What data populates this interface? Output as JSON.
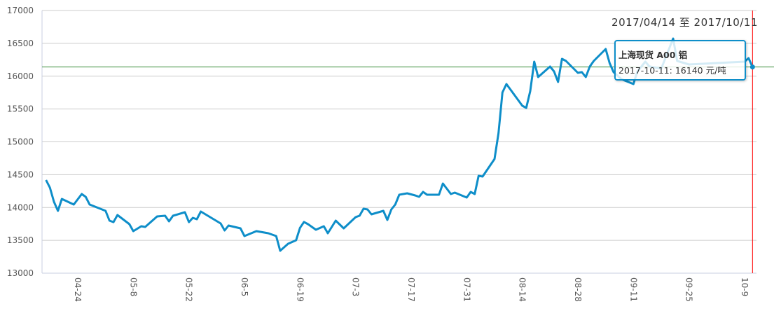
{
  "chart_data": {
    "type": "line",
    "title": "",
    "date_range_label": "2017/04/14 至 2017/10/11",
    "xlabel": "",
    "ylabel": "",
    "xlim": [
      "2017-04-15",
      "2017-10-12"
    ],
    "ylim": [
      13000,
      17000
    ],
    "yticks": [
      13000,
      13500,
      14000,
      14500,
      15000,
      15500,
      16000,
      16500,
      17000
    ],
    "xticks": [
      {
        "date": "2017-04-24",
        "label": "04-24"
      },
      {
        "date": "2017-05-08",
        "label": "05-8"
      },
      {
        "date": "2017-05-22",
        "label": "05-22"
      },
      {
        "date": "2017-06-05",
        "label": "06-5"
      },
      {
        "date": "2017-06-19",
        "label": "06-19"
      },
      {
        "date": "2017-07-03",
        "label": "07-3"
      },
      {
        "date": "2017-07-17",
        "label": "07-17"
      },
      {
        "date": "2017-07-31",
        "label": "07-31"
      },
      {
        "date": "2017-08-14",
        "label": "08-14"
      },
      {
        "date": "2017-08-28",
        "label": "08-28"
      },
      {
        "date": "2017-09-11",
        "label": "09-11"
      },
      {
        "date": "2017-09-25",
        "label": "09-25"
      },
      {
        "date": "2017-10-09",
        "label": "10-9"
      }
    ],
    "grid": true,
    "line_color": "#0e8ec9",
    "crosshair_color": "#ff0000",
    "reference_line_color": "#3f8f3f",
    "reference_value": 16140,
    "cursor_date": "2017-10-11",
    "series": [
      {
        "name": "上海现货 A00 铝",
        "points": [
          [
            "2017-04-16",
            14419
          ],
          [
            "2017-04-17",
            14301
          ],
          [
            "2017-04-18",
            14088
          ],
          [
            "2017-04-19",
            13949
          ],
          [
            "2017-04-20",
            14131
          ],
          [
            "2017-04-23",
            14045
          ],
          [
            "2017-04-25",
            14205
          ],
          [
            "2017-04-26",
            14163
          ],
          [
            "2017-04-27",
            14045
          ],
          [
            "2017-05-01",
            13949
          ],
          [
            "2017-05-02",
            13800
          ],
          [
            "2017-05-03",
            13778
          ],
          [
            "2017-05-04",
            13885
          ],
          [
            "2017-05-07",
            13747
          ],
          [
            "2017-05-08",
            13640
          ],
          [
            "2017-05-10",
            13715
          ],
          [
            "2017-05-11",
            13704
          ],
          [
            "2017-05-14",
            13864
          ],
          [
            "2017-05-16",
            13875
          ],
          [
            "2017-05-17",
            13789
          ],
          [
            "2017-05-18",
            13875
          ],
          [
            "2017-05-21",
            13928
          ],
          [
            "2017-05-22",
            13778
          ],
          [
            "2017-05-23",
            13843
          ],
          [
            "2017-05-24",
            13821
          ],
          [
            "2017-05-25",
            13939
          ],
          [
            "2017-05-30",
            13757
          ],
          [
            "2017-05-31",
            13651
          ],
          [
            "2017-06-01",
            13725
          ],
          [
            "2017-06-04",
            13683
          ],
          [
            "2017-06-05",
            13565
          ],
          [
            "2017-06-08",
            13640
          ],
          [
            "2017-06-11",
            13608
          ],
          [
            "2017-06-13",
            13565
          ],
          [
            "2017-06-14",
            13341
          ],
          [
            "2017-06-16",
            13448
          ],
          [
            "2017-06-18",
            13501
          ],
          [
            "2017-06-19",
            13690
          ],
          [
            "2017-06-20",
            13780
          ],
          [
            "2017-06-21",
            13747
          ],
          [
            "2017-06-23",
            13661
          ],
          [
            "2017-06-25",
            13715
          ],
          [
            "2017-06-26",
            13608
          ],
          [
            "2017-06-28",
            13800
          ],
          [
            "2017-06-30",
            13683
          ],
          [
            "2017-07-03",
            13853
          ],
          [
            "2017-07-04",
            13875
          ],
          [
            "2017-07-05",
            13981
          ],
          [
            "2017-07-06",
            13971
          ],
          [
            "2017-07-07",
            13896
          ],
          [
            "2017-07-10",
            13949
          ],
          [
            "2017-07-11",
            13811
          ],
          [
            "2017-07-12",
            13971
          ],
          [
            "2017-07-13",
            14045
          ],
          [
            "2017-07-14",
            14195
          ],
          [
            "2017-07-16",
            14216
          ],
          [
            "2017-07-18",
            14184
          ],
          [
            "2017-07-19",
            14163
          ],
          [
            "2017-07-20",
            14237
          ],
          [
            "2017-07-21",
            14195
          ],
          [
            "2017-07-24",
            14195
          ],
          [
            "2017-07-25",
            14365
          ],
          [
            "2017-07-27",
            14205
          ],
          [
            "2017-07-28",
            14227
          ],
          [
            "2017-07-31",
            14152
          ],
          [
            "2017-08-01",
            14237
          ],
          [
            "2017-08-02",
            14205
          ],
          [
            "2017-08-03",
            14483
          ],
          [
            "2017-08-04",
            14472
          ],
          [
            "2017-08-07",
            14739
          ],
          [
            "2017-08-08",
            15133
          ],
          [
            "2017-08-09",
            15752
          ],
          [
            "2017-08-10",
            15880
          ],
          [
            "2017-08-14",
            15549
          ],
          [
            "2017-08-15",
            15517
          ],
          [
            "2017-08-16",
            15773
          ],
          [
            "2017-08-17",
            16221
          ],
          [
            "2017-08-18",
            15987
          ],
          [
            "2017-08-21",
            16147
          ],
          [
            "2017-08-22",
            16072
          ],
          [
            "2017-08-23",
            15912
          ],
          [
            "2017-08-24",
            16264
          ],
          [
            "2017-08-25",
            16232
          ],
          [
            "2017-08-28",
            16051
          ],
          [
            "2017-08-29",
            16061
          ],
          [
            "2017-08-30",
            15987
          ],
          [
            "2017-08-31",
            16147
          ],
          [
            "2017-09-01",
            16232
          ],
          [
            "2017-09-04",
            16413
          ],
          [
            "2017-09-05",
            16200
          ],
          [
            "2017-09-06",
            16061
          ],
          [
            "2017-09-08",
            15955
          ],
          [
            "2017-09-11",
            15880
          ],
          [
            "2017-09-12",
            16072
          ],
          [
            "2017-09-14",
            16221
          ],
          [
            "2017-09-15",
            16150
          ],
          [
            "2017-09-18",
            16115
          ],
          [
            "2017-09-21",
            16573
          ],
          [
            "2017-09-22",
            16232
          ],
          [
            "2017-09-25",
            16179
          ],
          [
            "2017-09-29",
            16190
          ],
          [
            "2017-10-09",
            16221
          ],
          [
            "2017-10-10",
            16275
          ],
          [
            "2017-10-11",
            16140
          ]
        ]
      }
    ],
    "tooltip": {
      "title": "上海现货 A00 铝",
      "value_text": "2017-10-11: 16140 元/吨"
    }
  }
}
